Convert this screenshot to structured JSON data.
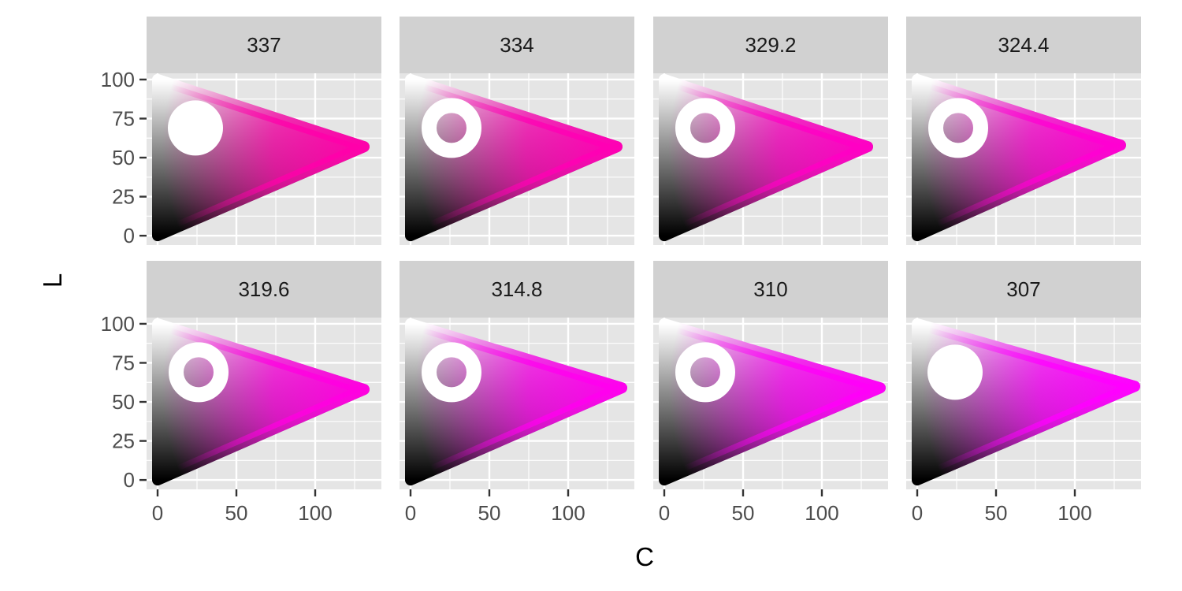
{
  "chart_data": {
    "type": "faceted-area",
    "xlabel": "C",
    "ylabel": "L",
    "xlim": [
      -7,
      142
    ],
    "ylim": [
      -6,
      104
    ],
    "x_ticks": [
      0,
      50,
      100
    ],
    "y_ticks": [
      0,
      25,
      50,
      75,
      100
    ],
    "grid": true,
    "layout": {
      "rows": 2,
      "cols": 4
    },
    "colors": {
      "panel_bg": "#e5e5e5",
      "strip_bg": "#d1d1d1",
      "grid": "#ffffff",
      "marker": "#ffffff"
    },
    "panels": [
      {
        "hue_label": "337",
        "hue": 337,
        "max_chroma": 131,
        "max_chroma_L": 57,
        "apex_color": "#ff00aa",
        "marker": {
          "C": 24,
          "L": 69,
          "type": "filled"
        }
      },
      {
        "hue_label": "334",
        "hue": 334,
        "max_chroma": 131,
        "max_chroma_L": 57,
        "apex_color": "#ff00b4",
        "marker": {
          "C": 26,
          "L": 69,
          "type": "ring"
        }
      },
      {
        "hue_label": "329.2",
        "hue": 329.2,
        "max_chroma": 129,
        "max_chroma_L": 57,
        "apex_color": "#ff00c4",
        "marker": {
          "C": 26,
          "L": 69,
          "type": "ring"
        }
      },
      {
        "hue_label": "324.4",
        "hue": 324.4,
        "max_chroma": 129,
        "max_chroma_L": 58,
        "apex_color": "#ff00d2",
        "marker": {
          "C": 26,
          "L": 69,
          "type": "ring"
        }
      },
      {
        "hue_label": "319.6",
        "hue": 319.6,
        "max_chroma": 131,
        "max_chroma_L": 58,
        "apex_color": "#ff00e0",
        "marker": {
          "C": 26,
          "L": 69,
          "type": "ring"
        }
      },
      {
        "hue_label": "314.8",
        "hue": 314.8,
        "max_chroma": 134,
        "max_chroma_L": 59,
        "apex_color": "#ff00ee",
        "marker": {
          "C": 26,
          "L": 69,
          "type": "ring"
        }
      },
      {
        "hue_label": "310",
        "hue": 310,
        "max_chroma": 137,
        "max_chroma_L": 59,
        "apex_color": "#ff00f8",
        "marker": {
          "C": 26,
          "L": 69,
          "type": "ring"
        }
      },
      {
        "hue_label": "307",
        "hue": 307,
        "max_chroma": 138,
        "max_chroma_L": 60,
        "apex_color": "#ff00ff",
        "marker": {
          "C": 24,
          "L": 69,
          "type": "filled"
        }
      }
    ]
  }
}
